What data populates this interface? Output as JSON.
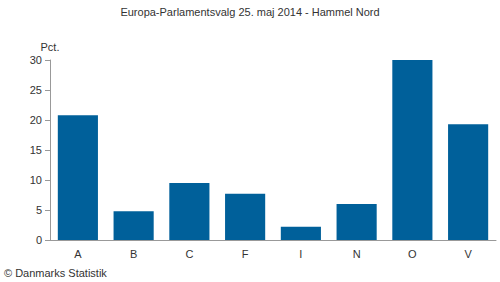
{
  "chart_data": {
    "type": "bar",
    "title": "Europa-Parlamentsvalg 25. maj 2014 - Hammel Nord",
    "ylabel": "Pct.",
    "source": "© Danmarks Statistik",
    "categories": [
      "A",
      "B",
      "C",
      "F",
      "I",
      "N",
      "O",
      "V"
    ],
    "values": [
      20.8,
      4.8,
      9.5,
      7.7,
      2.2,
      6.0,
      30.0,
      19.3
    ],
    "color": "#00609a",
    "ylim": [
      0,
      30
    ],
    "yticks": [
      0,
      5,
      10,
      15,
      20,
      25,
      30
    ],
    "grid": false
  }
}
